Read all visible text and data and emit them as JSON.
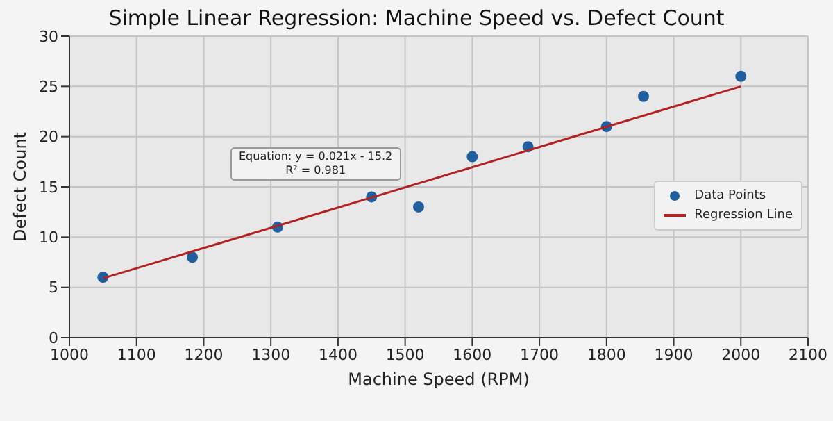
{
  "chart_data": {
    "type": "scatter",
    "title": "Simple Linear Regression: Machine Speed vs. Defect Count",
    "xlabel": "Machine Speed (RPM)",
    "ylabel": "Defect Count",
    "series": [
      {
        "name": "Data Points",
        "color": "#1f5f9e",
        "x": [
          1050,
          1183,
          1310,
          1450,
          1520,
          1600,
          1683,
          1800,
          1855,
          2000
        ],
        "values": [
          6,
          8,
          11,
          14,
          13,
          18,
          19,
          21,
          24,
          26
        ]
      },
      {
        "name": "Regression Line",
        "type": "line",
        "marker": "none",
        "color": "#b22222",
        "x": [
          1050,
          2000
        ],
        "values": [
          5.9,
          25
        ]
      }
    ],
    "xlim": [
      1000,
      2100
    ],
    "xticks": [
      1000,
      1100,
      1200,
      1300,
      1400,
      1500,
      1600,
      1700,
      1800,
      1900,
      2000,
      2100
    ],
    "ylim": [
      0,
      30
    ],
    "yticks": [
      0,
      5,
      10,
      15,
      20,
      25,
      30
    ],
    "annotations": [
      "Equation: y = 0.021x - 15.2\nR² = 0.981"
    ],
    "grid": true,
    "legend": "right",
    "marker": "circle"
  }
}
